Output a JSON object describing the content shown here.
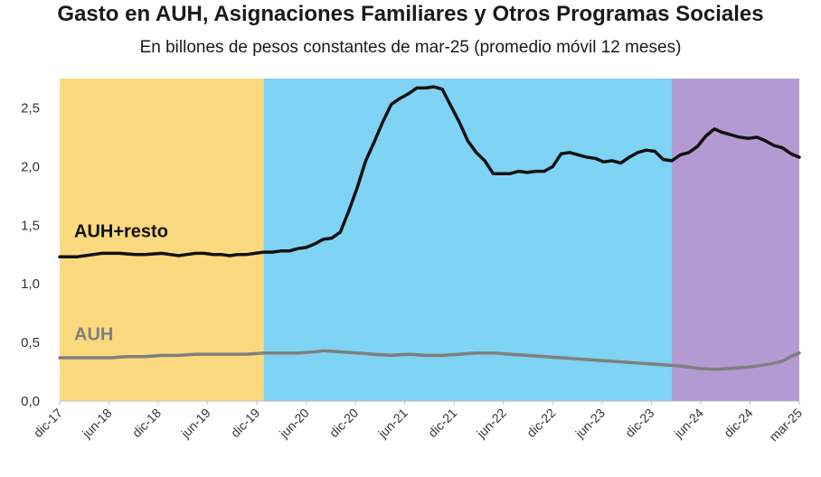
{
  "chart_data": {
    "type": "line",
    "title": "Gasto en AUH, Asignaciones Familiares y Otros Programas Sociales",
    "subtitle": "En billones de pesos constantes de mar-25 (promedio móvil 12 meses)",
    "ylim": [
      0,
      2.75
    ],
    "yticks": [
      "0,0",
      "0,5",
      "1,0",
      "1,5",
      "2,0",
      "2,5"
    ],
    "xticks": [
      "dic-17",
      "jun-18",
      "dic-18",
      "jun-19",
      "dic-19",
      "jun-20",
      "dic-20",
      "jun-21",
      "dic-21",
      "jun-22",
      "dic-22",
      "jun-23",
      "dic-23",
      "jun-24",
      "dic-24",
      "mar-25"
    ],
    "x_start": "2017-12",
    "x_end": "2025-03",
    "periods": [
      {
        "from": "2017-12",
        "to": "2019-12",
        "color": "#FBD97E"
      },
      {
        "from": "2019-12",
        "to": "2023-12",
        "color": "#7FD3F5"
      },
      {
        "from": "2023-12",
        "to": "2025-03",
        "color": "#B39AD2"
      }
    ],
    "series": [
      {
        "name": "AUH+resto",
        "color": "#111111",
        "values": [
          [
            "2017-12",
            1.23
          ],
          [
            "2018-01",
            1.23
          ],
          [
            "2018-02",
            1.23
          ],
          [
            "2018-03",
            1.24
          ],
          [
            "2018-04",
            1.25
          ],
          [
            "2018-05",
            1.26
          ],
          [
            "2018-06",
            1.26
          ],
          [
            "2018-07",
            1.26
          ],
          [
            "2018-08",
            1.255
          ],
          [
            "2018-09",
            1.25
          ],
          [
            "2018-10",
            1.25
          ],
          [
            "2018-11",
            1.255
          ],
          [
            "2018-12",
            1.26
          ],
          [
            "2019-01",
            1.25
          ],
          [
            "2019-02",
            1.24
          ],
          [
            "2019-03",
            1.25
          ],
          [
            "2019-04",
            1.26
          ],
          [
            "2019-05",
            1.26
          ],
          [
            "2019-06",
            1.25
          ],
          [
            "2019-07",
            1.25
          ],
          [
            "2019-08",
            1.24
          ],
          [
            "2019-09",
            1.25
          ],
          [
            "2019-10",
            1.25
          ],
          [
            "2019-11",
            1.26
          ],
          [
            "2019-12",
            1.27
          ],
          [
            "2020-01",
            1.27
          ],
          [
            "2020-02",
            1.28
          ],
          [
            "2020-03",
            1.28
          ],
          [
            "2020-04",
            1.3
          ],
          [
            "2020-05",
            1.31
          ],
          [
            "2020-06",
            1.34
          ],
          [
            "2020-07",
            1.38
          ],
          [
            "2020-08",
            1.39
          ],
          [
            "2020-09",
            1.44
          ],
          [
            "2020-10",
            1.62
          ],
          [
            "2020-11",
            1.82
          ],
          [
            "2020-12",
            2.05
          ],
          [
            "2021-01",
            2.21
          ],
          [
            "2021-02",
            2.38
          ],
          [
            "2021-03",
            2.53
          ],
          [
            "2021-04",
            2.58
          ],
          [
            "2021-05",
            2.62
          ],
          [
            "2021-06",
            2.67
          ],
          [
            "2021-07",
            2.67
          ],
          [
            "2021-08",
            2.68
          ],
          [
            "2021-09",
            2.66
          ],
          [
            "2021-10",
            2.52
          ],
          [
            "2021-11",
            2.38
          ],
          [
            "2021-12",
            2.22
          ],
          [
            "2022-01",
            2.12
          ],
          [
            "2022-02",
            2.05
          ],
          [
            "2022-03",
            1.94
          ],
          [
            "2022-04",
            1.94
          ],
          [
            "2022-05",
            1.94
          ],
          [
            "2022-06",
            1.96
          ],
          [
            "2022-07",
            1.95
          ],
          [
            "2022-08",
            1.96
          ],
          [
            "2022-09",
            1.96
          ],
          [
            "2022-10",
            2.0
          ],
          [
            "2022-11",
            2.11
          ],
          [
            "2022-12",
            2.12
          ],
          [
            "2023-01",
            2.1
          ],
          [
            "2023-02",
            2.08
          ],
          [
            "2023-03",
            2.07
          ],
          [
            "2023-04",
            2.04
          ],
          [
            "2023-05",
            2.05
          ],
          [
            "2023-06",
            2.03
          ],
          [
            "2023-07",
            2.08
          ],
          [
            "2023-08",
            2.12
          ],
          [
            "2023-09",
            2.14
          ],
          [
            "2023-10",
            2.13
          ],
          [
            "2023-11",
            2.06
          ],
          [
            "2023-12",
            2.05
          ],
          [
            "2024-01",
            2.1
          ],
          [
            "2024-02",
            2.12
          ],
          [
            "2024-03",
            2.17
          ],
          [
            "2024-04",
            2.26
          ],
          [
            "2024-05",
            2.32
          ],
          [
            "2024-06",
            2.29
          ],
          [
            "2024-07",
            2.27
          ],
          [
            "2024-08",
            2.25
          ],
          [
            "2024-09",
            2.24
          ],
          [
            "2024-10",
            2.25
          ],
          [
            "2024-11",
            2.22
          ],
          [
            "2024-12",
            2.18
          ],
          [
            "2025-01",
            2.16
          ],
          [
            "2025-02",
            2.11
          ],
          [
            "2025-03",
            2.08
          ]
        ]
      },
      {
        "name": "AUH",
        "color": "#7F7F7F",
        "values": [
          [
            "2017-12",
            0.37
          ],
          [
            "2018-02",
            0.37
          ],
          [
            "2018-04",
            0.37
          ],
          [
            "2018-06",
            0.37
          ],
          [
            "2018-08",
            0.38
          ],
          [
            "2018-10",
            0.38
          ],
          [
            "2018-12",
            0.39
          ],
          [
            "2019-02",
            0.39
          ],
          [
            "2019-04",
            0.4
          ],
          [
            "2019-06",
            0.4
          ],
          [
            "2019-08",
            0.4
          ],
          [
            "2019-10",
            0.4
          ],
          [
            "2019-12",
            0.41
          ],
          [
            "2020-02",
            0.41
          ],
          [
            "2020-04",
            0.41
          ],
          [
            "2020-06",
            0.42
          ],
          [
            "2020-07",
            0.43
          ],
          [
            "2020-09",
            0.42
          ],
          [
            "2020-11",
            0.41
          ],
          [
            "2021-01",
            0.4
          ],
          [
            "2021-03",
            0.39
          ],
          [
            "2021-05",
            0.4
          ],
          [
            "2021-07",
            0.39
          ],
          [
            "2021-09",
            0.39
          ],
          [
            "2021-11",
            0.4
          ],
          [
            "2022-01",
            0.41
          ],
          [
            "2022-03",
            0.41
          ],
          [
            "2022-05",
            0.4
          ],
          [
            "2022-07",
            0.39
          ],
          [
            "2022-09",
            0.38
          ],
          [
            "2022-11",
            0.37
          ],
          [
            "2023-01",
            0.36
          ],
          [
            "2023-03",
            0.35
          ],
          [
            "2023-05",
            0.34
          ],
          [
            "2023-07",
            0.33
          ],
          [
            "2023-09",
            0.32
          ],
          [
            "2023-11",
            0.31
          ],
          [
            "2024-01",
            0.3
          ],
          [
            "2024-03",
            0.28
          ],
          [
            "2024-05",
            0.27
          ],
          [
            "2024-07",
            0.28
          ],
          [
            "2024-09",
            0.29
          ],
          [
            "2024-11",
            0.31
          ],
          [
            "2025-01",
            0.34
          ],
          [
            "2025-02",
            0.38
          ],
          [
            "2025-03",
            0.41
          ]
        ]
      }
    ],
    "labels": {
      "AUH+resto": {
        "value": 1.4,
        "at": "2017-12"
      },
      "AUH": {
        "value": 0.52,
        "at": "2017-12"
      }
    }
  }
}
